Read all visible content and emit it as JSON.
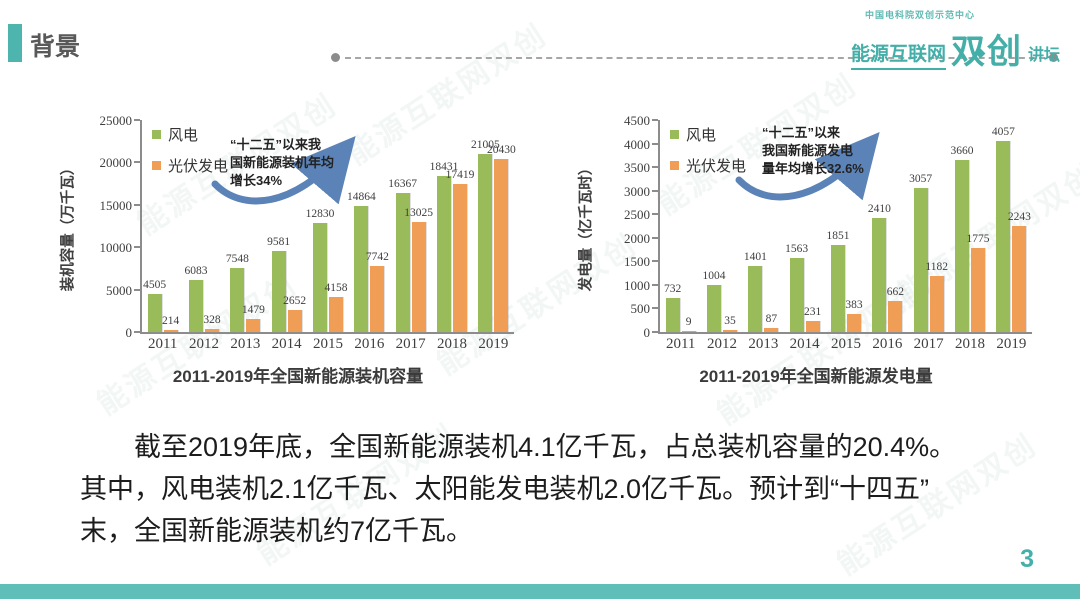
{
  "header": {
    "title": "背景",
    "logo": {
      "top_text": "中国电科院双创示范中心",
      "name_left": "能源互联网",
      "name_big": "双创",
      "name_right": "讲坛"
    }
  },
  "chart_data": [
    {
      "type": "bar",
      "title": "2011-2019年全国新能源装机容量",
      "ylabel": "装机容量（万千瓦）",
      "xlabel": "",
      "categories": [
        "2011",
        "2012",
        "2013",
        "2014",
        "2015",
        "2016",
        "2017",
        "2018",
        "2019"
      ],
      "series": [
        {
          "name": "风电",
          "color": "#9abb59",
          "values": [
            4505,
            6083,
            7548,
            9581,
            12830,
            14864,
            16367,
            18431,
            21005
          ]
        },
        {
          "name": "光伏发电",
          "color": "#f09e55",
          "values": [
            214,
            328,
            1479,
            2652,
            4158,
            7742,
            13025,
            17419,
            20430
          ]
        }
      ],
      "ylim": [
        0,
        25000
      ],
      "ytick_step": 5000,
      "grid": false,
      "legend_position": "top-left",
      "annotation_lines": [
        "“十二五”以来我",
        "国新能源装机年均",
        "增长34%"
      ]
    },
    {
      "type": "bar",
      "title": "2011-2019年全国新能源发电量",
      "ylabel": "发电量（亿千瓦时）",
      "xlabel": "",
      "categories": [
        "2011",
        "2012",
        "2013",
        "2014",
        "2015",
        "2016",
        "2017",
        "2018",
        "2019"
      ],
      "series": [
        {
          "name": "风电",
          "color": "#9abb59",
          "values": [
            732,
            1004,
            1401,
            1563,
            1851,
            2410,
            3057,
            3660,
            4057
          ]
        },
        {
          "name": "光伏发电",
          "color": "#f09e55",
          "values": [
            9,
            35,
            87,
            231,
            383,
            662,
            1182,
            1775,
            2243
          ]
        }
      ],
      "ylim": [
        0,
        4500
      ],
      "ytick_step": 500,
      "grid": false,
      "legend_position": "top-left",
      "annotation_lines": [
        "“十二五”以来",
        "我国新能源发电",
        "量年均增长32.6%"
      ]
    }
  ],
  "body_lines": [
    "截至2019年底，全国新能源装机4.1亿千瓦，占总装机容量的20.4%。",
    "其中，风电装机2.1亿千瓦、太阳能发电装机2.0亿千瓦。预计到“十四五”",
    "末，全国新能源装机约7亿千瓦。"
  ],
  "page_number": "3",
  "watermark_text": "能源互联网双创",
  "colors": {
    "accent_teal": "#4db4ae",
    "footer_teal": "#5fbeb8",
    "wind_green": "#9abb59",
    "pv_orange": "#f09e55",
    "arrow_blue": "#5b83b7"
  }
}
